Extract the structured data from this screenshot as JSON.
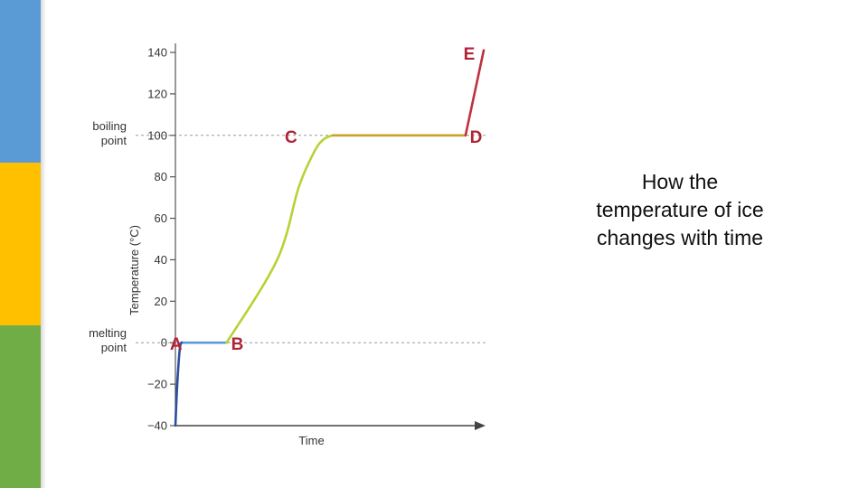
{
  "sidebar": {
    "stripe_colors": [
      "#5b9bd5",
      "#ffc000",
      "#70ad47"
    ]
  },
  "caption": {
    "lines": [
      "How the",
      "temperature of ice",
      "changes with time"
    ]
  },
  "chart_data": {
    "type": "line",
    "title": "",
    "xlabel": "Time",
    "ylabel": "Temperature (°C)",
    "ylim": [
      -40,
      140
    ],
    "yticks": [
      {
        "value": 140,
        "label": "140"
      },
      {
        "value": 120,
        "label": "120"
      },
      {
        "value": 100,
        "label": "100"
      },
      {
        "value": 80,
        "label": "80"
      },
      {
        "value": 60,
        "label": "60"
      },
      {
        "value": 40,
        "label": "40"
      },
      {
        "value": 20,
        "label": "20"
      },
      {
        "value": 0,
        "label": "0"
      },
      {
        "value": -20,
        "label": "−20"
      },
      {
        "value": -40,
        "label": "−40"
      }
    ],
    "reference_lines": [
      {
        "value": 100,
        "label_lines": [
          "boiling",
          "point"
        ]
      },
      {
        "value": 0,
        "label_lines": [
          "melting",
          "point"
        ]
      }
    ],
    "series": [
      {
        "color": "#2e4e9e",
        "points": [
          [
            0.0,
            -40
          ],
          [
            0.6,
            -20
          ],
          [
            1.5,
            -2
          ],
          [
            2.6,
            0
          ]
        ],
        "smooth": true
      },
      {
        "color": "#5b9bd5",
        "points": [
          [
            2.6,
            0
          ],
          [
            16.6,
            0
          ]
        ]
      },
      {
        "color": "#b5d334",
        "points": [
          [
            16.6,
            0
          ],
          [
            33,
            40
          ],
          [
            40,
            75
          ],
          [
            45,
            92
          ],
          [
            48,
            98
          ],
          [
            51,
            100
          ]
        ],
        "smooth": true
      },
      {
        "color": "#c8a22a",
        "points": [
          [
            51,
            100
          ],
          [
            94.1,
            100
          ]
        ]
      },
      {
        "color": "#c0303f",
        "points": [
          [
            94.1,
            100
          ],
          [
            100,
            141
          ]
        ]
      }
    ],
    "point_labels": [
      {
        "text": "A",
        "x": 0.2,
        "y": 0
      },
      {
        "text": "B",
        "x": 20.1,
        "y": 0
      },
      {
        "text": "C",
        "x": 37.5,
        "y": 100
      },
      {
        "text": "D",
        "x": 97.5,
        "y": 100
      },
      {
        "text": "E",
        "x": 95.3,
        "y": 140
      }
    ],
    "label_color": "#b22234",
    "xlim": [
      0,
      100
    ],
    "grid": false
  }
}
